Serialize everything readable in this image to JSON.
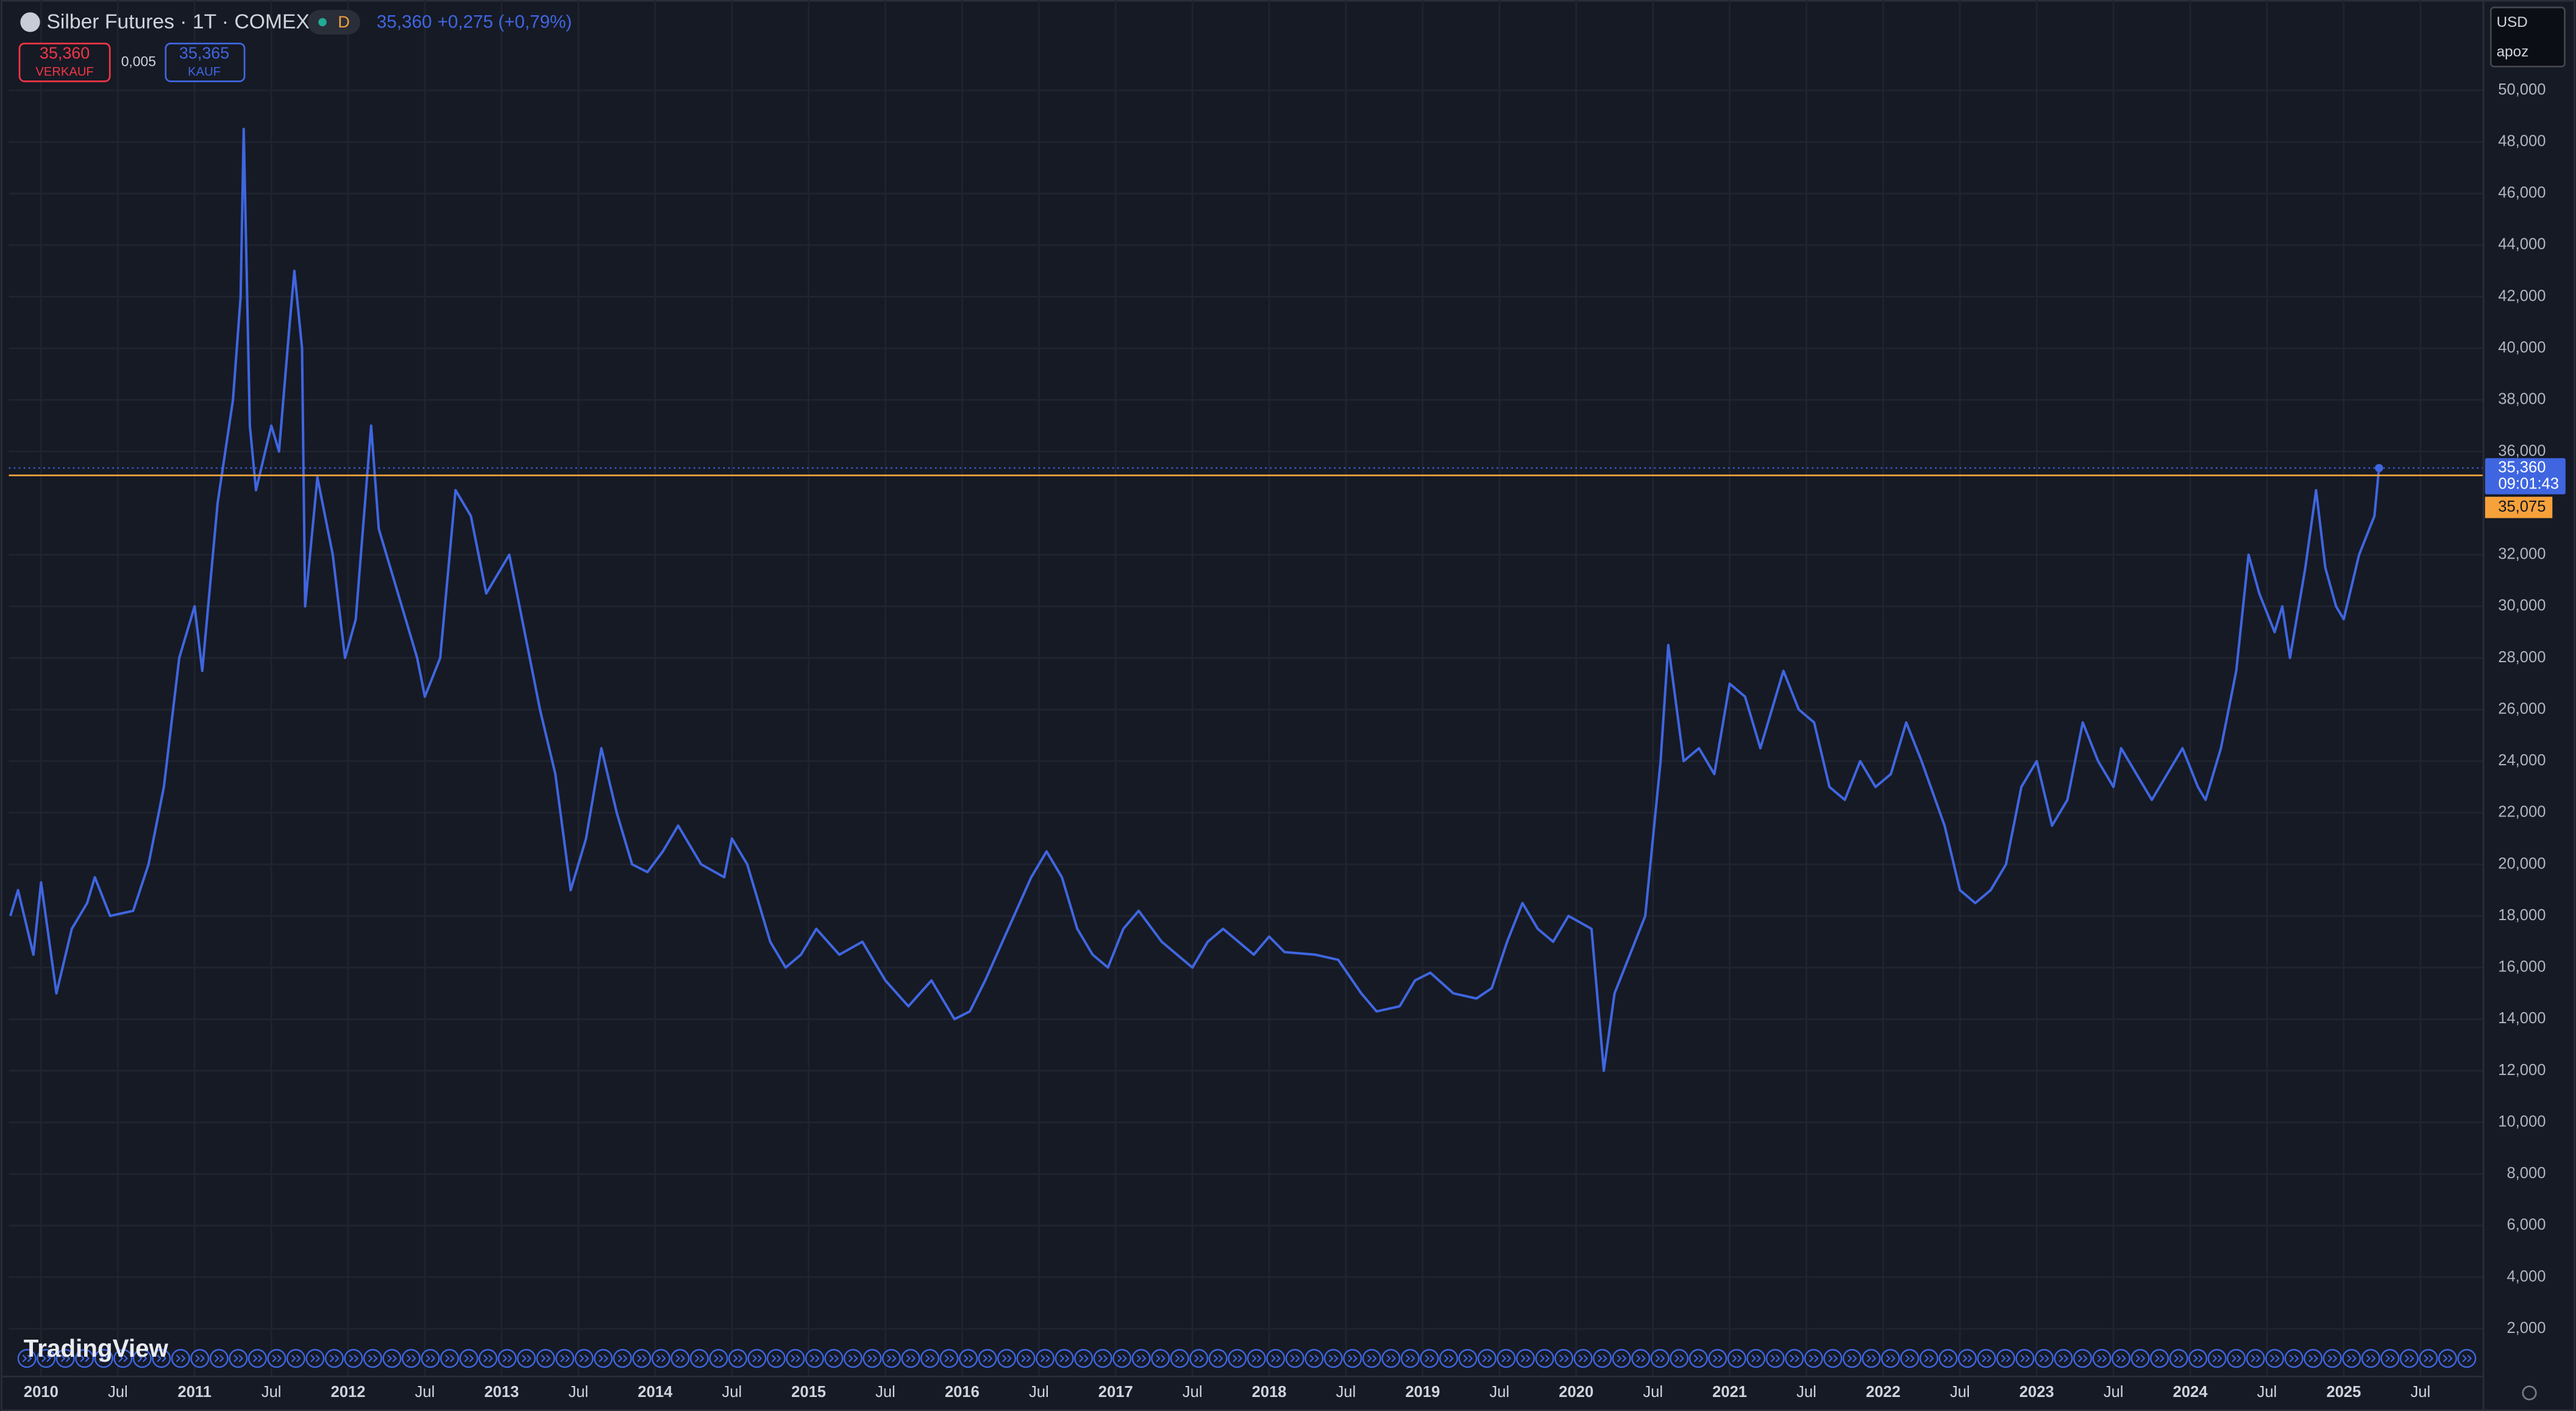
{
  "header": {
    "title": "Silber Futures · 1T · COMEX",
    "interval_badge": "D",
    "last": "35,360",
    "change": "+0,275 (+0,79%)"
  },
  "order_panel": {
    "sell_price": "35,360",
    "sell_label": "VERKAUF",
    "spread": "0,005",
    "buy_price": "35,365",
    "buy_label": "KAUF"
  },
  "currency": "USD",
  "unit_selector": "apoz",
  "logo": "TradingView",
  "chart_data": {
    "type": "line",
    "x": [
      2009.8,
      2009.85,
      2009.95,
      2010.0,
      2010.1,
      2010.2,
      2010.3,
      2010.35,
      2010.45,
      2010.6,
      2010.7,
      2010.8,
      2010.9,
      2011.0,
      2011.05,
      2011.15,
      2011.25,
      2011.3,
      2011.32,
      2011.36,
      2011.4,
      2011.5,
      2011.55,
      2011.62,
      2011.65,
      2011.7,
      2011.72,
      2011.8,
      2011.9,
      2011.98,
      2012.05,
      2012.15,
      2012.2,
      2012.3,
      2012.45,
      2012.5,
      2012.6,
      2012.7,
      2012.8,
      2012.9,
      2012.95,
      2013.05,
      2013.15,
      2013.25,
      2013.35,
      2013.45,
      2013.55,
      2013.65,
      2013.75,
      2013.85,
      2013.95,
      2014.05,
      2014.15,
      2014.3,
      2014.45,
      2014.5,
      2014.6,
      2014.75,
      2014.85,
      2014.95,
      2015.05,
      2015.2,
      2015.35,
      2015.5,
      2015.65,
      2015.8,
      2015.95,
      2016.05,
      2016.15,
      2016.3,
      2016.45,
      2016.55,
      2016.65,
      2016.75,
      2016.85,
      2016.95,
      2017.05,
      2017.15,
      2017.3,
      2017.4,
      2017.5,
      2017.6,
      2017.7,
      2017.8,
      2017.9,
      2018.0,
      2018.1,
      2018.3,
      2018.45,
      2018.6,
      2018.7,
      2018.85,
      2018.95,
      2019.05,
      2019.2,
      2019.35,
      2019.45,
      2019.55,
      2019.65,
      2019.75,
      2019.85,
      2019.95,
      2020.1,
      2020.18,
      2020.25,
      2020.35,
      2020.45,
      2020.55,
      2020.6,
      2020.7,
      2020.8,
      2020.9,
      2021.0,
      2021.1,
      2021.2,
      2021.35,
      2021.45,
      2021.55,
      2021.65,
      2021.75,
      2021.85,
      2021.95,
      2022.05,
      2022.15,
      2022.25,
      2022.4,
      2022.5,
      2022.6,
      2022.7,
      2022.8,
      2022.9,
      2023.0,
      2023.1,
      2023.2,
      2023.3,
      2023.4,
      2023.5,
      2023.55,
      2023.65,
      2023.75,
      2023.85,
      2023.95,
      2024.05,
      2024.1,
      2024.2,
      2024.3,
      2024.38,
      2024.45,
      2024.55,
      2024.6,
      2024.65,
      2024.75,
      2024.82,
      2024.88,
      2024.95,
      2025.0,
      2025.1,
      2025.2,
      2025.23
    ],
    "series": [
      {
        "name": "Silber Futures",
        "color": "#3f66e0",
        "values": [
          18,
          19,
          16.5,
          19.3,
          15,
          17.5,
          18.5,
          19.5,
          18,
          18.2,
          20,
          23,
          28,
          30,
          27.5,
          34,
          38,
          42,
          48.5,
          37,
          34.5,
          37,
          36,
          41,
          43,
          40,
          30,
          35,
          32,
          28,
          29.5,
          37,
          33,
          31,
          28,
          26.5,
          28,
          34.5,
          33.5,
          30.5,
          31,
          32,
          29,
          26,
          23.5,
          19,
          21,
          24.5,
          22,
          20,
          19.7,
          20.5,
          21.5,
          20,
          19.5,
          21,
          20,
          17,
          16,
          16.5,
          17.5,
          16.5,
          17,
          15.5,
          14.5,
          15.5,
          14,
          14.3,
          15.5,
          17.5,
          19.5,
          20.5,
          19.5,
          17.5,
          16.5,
          16,
          17.5,
          18.2,
          17,
          16.5,
          16,
          17,
          17.5,
          17,
          16.5,
          17.2,
          16.6,
          16.5,
          16.3,
          15,
          14.3,
          14.5,
          15.5,
          15.8,
          15,
          14.8,
          15.2,
          17,
          18.5,
          17.5,
          17,
          18,
          17.5,
          12,
          15,
          16.5,
          18,
          24,
          28.5,
          24,
          24.5,
          23.5,
          27,
          26.5,
          24.5,
          27.5,
          26,
          25.5,
          23,
          22.5,
          24,
          23,
          23.5,
          25.5,
          24,
          21.5,
          19,
          18.5,
          19,
          20,
          23,
          24,
          21.5,
          22.5,
          25.5,
          24,
          23,
          24.5,
          23.5,
          22.5,
          23.5,
          24.5,
          23,
          22.5,
          24.5,
          27.5,
          32,
          30.5,
          29,
          30,
          28,
          31.5,
          34.5,
          31.5,
          30,
          29.5,
          32,
          33.5,
          35.36
        ]
      }
    ],
    "last_price_label": "35,360",
    "countdown": "09:01:43",
    "reference_line": {
      "value": 35.075,
      "label": "35,075",
      "color": "#f7a13a"
    },
    "xlim": [
      2009.79,
      2025.91
    ],
    "ylim": [
      0.15,
      53.5
    ],
    "xticks": [
      2010,
      {
        "value": 2010.5,
        "label": "Jul"
      },
      2011,
      {
        "value": 2011.5,
        "label": "Jul"
      },
      2012,
      {
        "value": 2012.5,
        "label": "Jul"
      },
      2013,
      {
        "value": 2013.5,
        "label": "Jul"
      },
      2014,
      {
        "value": 2014.5,
        "label": "Jul"
      },
      2015,
      {
        "value": 2015.5,
        "label": "Jul"
      },
      2016,
      {
        "value": 2016.5,
        "label": "Jul"
      },
      2017,
      {
        "value": 2017.5,
        "label": "Jul"
      },
      2018,
      {
        "value": 2018.5,
        "label": "Jul"
      },
      2019,
      {
        "value": 2019.5,
        "label": "Jul"
      },
      2020,
      {
        "value": 2020.5,
        "label": "Jul"
      },
      2021,
      {
        "value": 2021.5,
        "label": "Jul"
      },
      2022,
      {
        "value": 2022.5,
        "label": "Jul"
      },
      2023,
      {
        "value": 2023.5,
        "label": "Jul"
      },
      2024,
      {
        "value": 2024.5,
        "label": "Jul"
      },
      2025,
      {
        "value": 2025.5,
        "label": "Jul"
      }
    ],
    "yticks": [
      {
        "value": 2,
        "label": "2,000"
      },
      {
        "value": 4,
        "label": "4,000"
      },
      {
        "value": 6,
        "label": "6,000"
      },
      {
        "value": 8,
        "label": "8,000"
      },
      {
        "value": 10,
        "label": "10,000"
      },
      {
        "value": 12,
        "label": "12,000"
      },
      {
        "value": 14,
        "label": "14,000"
      },
      {
        "value": 16,
        "label": "16,000"
      },
      {
        "value": 18,
        "label": "18,000"
      },
      {
        "value": 20,
        "label": "20,000"
      },
      {
        "value": 22,
        "label": "22,000"
      },
      {
        "value": 24,
        "label": "24,000"
      },
      {
        "value": 26,
        "label": "26,000"
      },
      {
        "value": 28,
        "label": "28,000"
      },
      {
        "value": 30,
        "label": "30,000"
      },
      {
        "value": 32,
        "label": "32,000"
      },
      {
        "value": 36,
        "label": "36,000"
      },
      {
        "value": 38,
        "label": "38,000"
      },
      {
        "value": 40,
        "label": "40,000"
      },
      {
        "value": 42,
        "label": "42,000"
      },
      {
        "value": 44,
        "label": "44,000"
      },
      {
        "value": 46,
        "label": "46,000"
      },
      {
        "value": 48,
        "label": "48,000"
      },
      {
        "value": 50,
        "label": "50,000"
      }
    ],
    "grid": true
  }
}
